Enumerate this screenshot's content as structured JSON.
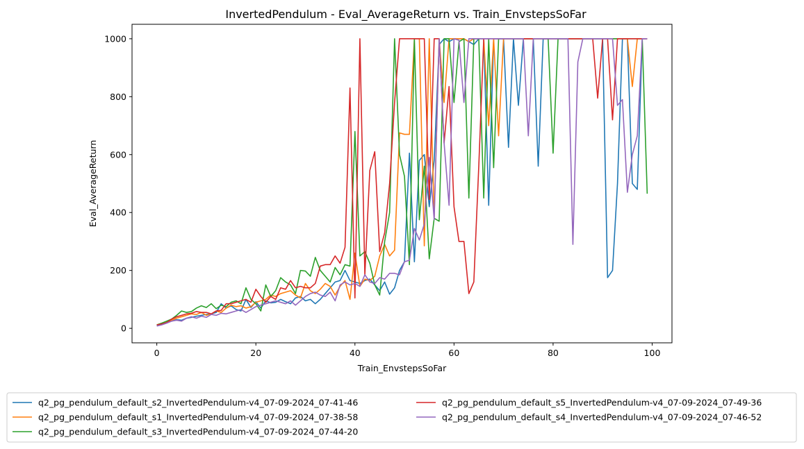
{
  "chart_data": {
    "type": "line",
    "title": "InvertedPendulum - Eval_AverageReturn vs. Train_EnvstepsSoFar",
    "xlabel": "Train_EnvstepsSoFar",
    "ylabel": "Eval_AverageReturn",
    "xlim": [
      -5,
      104
    ],
    "ylim": [
      -50,
      1050
    ],
    "xticks": [
      0,
      20,
      40,
      60,
      80,
      100
    ],
    "yticks": [
      0,
      200,
      400,
      600,
      800,
      1000
    ],
    "grid": false,
    "legend_position": "bottom-center",
    "series": [
      {
        "name": "q2_pg_pendulum_default_s2_InvertedPendulum-v4_07-09-2024_07-41-46",
        "color": "#1f77b4",
        "x": [
          0,
          1,
          2,
          3,
          4,
          5,
          6,
          7,
          8,
          9,
          10,
          11,
          12,
          13,
          14,
          15,
          16,
          17,
          18,
          19,
          20,
          21,
          22,
          23,
          24,
          25,
          26,
          27,
          28,
          29,
          30,
          31,
          32,
          33,
          34,
          35,
          36,
          37,
          38,
          39,
          40,
          41,
          42,
          43,
          44,
          45,
          46,
          47,
          48,
          49,
          50,
          51,
          52,
          53,
          54,
          55,
          56,
          57,
          58,
          59,
          60,
          61,
          62,
          63,
          64,
          65,
          66,
          67,
          68,
          69,
          70,
          71,
          72,
          73,
          74,
          75,
          76,
          77,
          78,
          79,
          80,
          81,
          82,
          83,
          84,
          85,
          86,
          87,
          88,
          89,
          90,
          91,
          92,
          93,
          94,
          95,
          96,
          97,
          98,
          99
        ],
        "y": [
          10,
          15,
          22,
          25,
          30,
          28,
          35,
          38,
          42,
          45,
          48,
          50,
          55,
          85,
          70,
          78,
          65,
          60,
          100,
          72,
          92,
          70,
          95,
          88,
          90,
          100,
          92,
          85,
          105,
          110,
          95,
          100,
          85,
          100,
          120,
          140,
          160,
          165,
          200,
          165,
          160,
          155,
          165,
          170,
          150,
          130,
          160,
          118,
          140,
          200,
          230,
          605,
          230,
          580,
          600,
          420,
          580,
          980,
          1000,
          990,
          1000,
          1000,
          1000,
          990,
          980,
          1000,
          1000,
          425,
          1000,
          1000,
          1000,
          625,
          1000,
          770,
          1000,
          1000,
          1000,
          560,
          1000,
          1000,
          1000,
          1000,
          1000,
          1000,
          1000,
          1000,
          1000,
          1000,
          1000,
          1000,
          1000,
          175,
          200,
          500,
          1000,
          1000,
          500,
          480,
          1000,
          1000
        ]
      },
      {
        "name": "q2_pg_pendulum_default_s1_InvertedPendulum-v4_07-09-2024_07-38-58",
        "color": "#ff7f0e",
        "x": [
          0,
          1,
          2,
          3,
          4,
          5,
          6,
          7,
          8,
          9,
          10,
          11,
          12,
          13,
          14,
          15,
          16,
          17,
          18,
          19,
          20,
          21,
          22,
          23,
          24,
          25,
          26,
          27,
          28,
          29,
          30,
          31,
          32,
          33,
          34,
          35,
          36,
          37,
          38,
          39,
          40,
          41,
          42,
          43,
          44,
          45,
          46,
          47,
          48,
          49,
          50,
          51,
          52,
          53,
          54,
          55,
          56,
          57,
          58,
          59,
          60,
          61,
          62,
          63,
          64,
          65,
          66,
          67,
          68,
          69,
          70,
          71,
          72,
          73,
          74,
          75,
          76,
          77,
          78,
          79,
          80,
          81,
          82,
          83,
          84,
          85,
          86,
          87,
          88,
          89,
          90,
          91,
          92,
          93,
          94,
          95,
          96,
          97,
          98,
          99
        ],
        "y": [
          12,
          18,
          22,
          28,
          35,
          40,
          45,
          50,
          48,
          55,
          45,
          50,
          60,
          55,
          70,
          80,
          75,
          78,
          70,
          75,
          90,
          95,
          100,
          115,
          110,
          120,
          125,
          130,
          115,
          105,
          155,
          130,
          120,
          135,
          155,
          145,
          115,
          145,
          165,
          100,
          260,
          145,
          170,
          165,
          180,
          250,
          290,
          250,
          270,
          675,
          670,
          670,
          1000,
          1000,
          285,
          1000,
          385,
          1000,
          780,
          1000,
          1000,
          1000,
          1000,
          990,
          1000,
          1000,
          1000,
          700,
          1000,
          665,
          1000,
          1000,
          1000,
          1000,
          1000,
          1000,
          1000,
          1000,
          1000,
          1000,
          1000,
          1000,
          1000,
          1000,
          1000,
          1000,
          1000,
          1000,
          1000,
          1000,
          1000,
          1000,
          1000,
          1000,
          1000,
          1000,
          835,
          1000,
          1000,
          1000
        ]
      },
      {
        "name": "q2_pg_pendulum_default_s3_InvertedPendulum-v4_07-09-2024_07-44-20",
        "color": "#2ca02c",
        "x": [
          0,
          1,
          2,
          3,
          4,
          5,
          6,
          7,
          8,
          9,
          10,
          11,
          12,
          13,
          14,
          15,
          16,
          17,
          18,
          19,
          20,
          21,
          22,
          23,
          24,
          25,
          26,
          27,
          28,
          29,
          30,
          31,
          32,
          33,
          34,
          35,
          36,
          37,
          38,
          39,
          40,
          41,
          42,
          43,
          44,
          45,
          46,
          47,
          48,
          49,
          50,
          51,
          52,
          53,
          54,
          55,
          56,
          57,
          58,
          59,
          60,
          61,
          62,
          63,
          64,
          65,
          66,
          67,
          68,
          69,
          70,
          71,
          72,
          73,
          74,
          75,
          76,
          77,
          78,
          79,
          80,
          81,
          82,
          83,
          84,
          85,
          86,
          87,
          88,
          89,
          90,
          91,
          92,
          93,
          94,
          95,
          96,
          97,
          98,
          99
        ],
        "y": [
          12,
          18,
          25,
          32,
          45,
          60,
          55,
          58,
          70,
          78,
          72,
          85,
          68,
          80,
          75,
          90,
          95,
          85,
          140,
          100,
          85,
          60,
          150,
          110,
          130,
          175,
          160,
          150,
          120,
          200,
          198,
          180,
          245,
          200,
          180,
          160,
          210,
          185,
          220,
          215,
          680,
          250,
          265,
          225,
          150,
          115,
          300,
          400,
          1000,
          600,
          525,
          220,
          1000,
          375,
          560,
          240,
          380,
          370,
          1000,
          1000,
          780,
          990,
          1000,
          450,
          1000,
          1000,
          450,
          1000,
          555,
          1000,
          1000,
          1000,
          1000,
          1000,
          1000,
          1000,
          1000,
          1000,
          1000,
          1000,
          605,
          1000,
          1000,
          1000,
          1000,
          1000,
          1000,
          1000,
          1000,
          1000,
          1000,
          1000,
          1000,
          1000,
          1000,
          1000,
          1000,
          1000,
          1000,
          465
        ]
      },
      {
        "name": "q2_pg_pendulum_default_s5_InvertedPendulum-v4_07-09-2024_07-49-36",
        "color": "#d62728",
        "x": [
          0,
          1,
          2,
          3,
          4,
          5,
          6,
          7,
          8,
          9,
          10,
          11,
          12,
          13,
          14,
          15,
          16,
          17,
          18,
          19,
          20,
          21,
          22,
          23,
          24,
          25,
          26,
          27,
          28,
          29,
          30,
          31,
          32,
          33,
          34,
          35,
          36,
          37,
          38,
          39,
          40,
          41,
          42,
          43,
          44,
          45,
          46,
          47,
          48,
          49,
          50,
          51,
          52,
          53,
          54,
          55,
          56,
          57,
          58,
          59,
          60,
          61,
          62,
          63,
          64,
          65,
          66,
          67,
          68,
          69,
          70,
          71,
          72,
          73,
          74,
          75,
          76,
          77,
          78,
          79,
          80,
          81,
          82,
          83,
          84,
          85,
          86,
          87,
          88,
          89,
          90,
          91,
          92,
          93,
          94,
          95,
          96,
          97,
          98,
          99
        ],
        "y": [
          12,
          15,
          20,
          32,
          40,
          45,
          50,
          52,
          58,
          55,
          55,
          50,
          60,
          62,
          85,
          85,
          90,
          95,
          100,
          90,
          135,
          110,
          90,
          110,
          100,
          140,
          135,
          165,
          140,
          145,
          140,
          140,
          155,
          215,
          220,
          220,
          250,
          225,
          280,
          830,
          105,
          1000,
          185,
          545,
          610,
          265,
          330,
          500,
          780,
          1000,
          1000,
          1000,
          1000,
          1000,
          1000,
          445,
          1000,
          1000,
          640,
          835,
          420,
          300,
          300,
          120,
          160,
          560,
          1000,
          1000,
          1000,
          1000,
          1000,
          1000,
          1000,
          1000,
          1000,
          1000,
          1000,
          1000,
          1000,
          1000,
          1000,
          1000,
          1000,
          1000,
          1000,
          1000,
          1000,
          1000,
          1000,
          795,
          1000,
          1000,
          720,
          1000,
          1000,
          1000,
          1000,
          1000,
          1000,
          1000
        ]
      },
      {
        "name": "q2_pg_pendulum_default_s4_InvertedPendulum-v4_07-09-2024_07-46-52",
        "color": "#9467bd",
        "x": [
          0,
          1,
          2,
          3,
          4,
          5,
          6,
          7,
          8,
          9,
          10,
          11,
          12,
          13,
          14,
          15,
          16,
          17,
          18,
          19,
          20,
          21,
          22,
          23,
          24,
          25,
          26,
          27,
          28,
          29,
          30,
          31,
          32,
          33,
          34,
          35,
          36,
          37,
          38,
          39,
          40,
          41,
          42,
          43,
          44,
          45,
          46,
          47,
          48,
          49,
          50,
          51,
          52,
          53,
          54,
          55,
          56,
          57,
          58,
          59,
          60,
          61,
          62,
          63,
          64,
          65,
          66,
          67,
          68,
          69,
          70,
          71,
          72,
          73,
          74,
          75,
          76,
          77,
          78,
          79,
          80,
          81,
          82,
          83,
          84,
          85,
          86,
          87,
          88,
          89,
          90,
          91,
          92,
          93,
          94,
          95,
          96,
          97,
          98,
          99
        ],
        "y": [
          8,
          12,
          18,
          25,
          28,
          25,
          35,
          40,
          35,
          42,
          38,
          48,
          45,
          52,
          50,
          55,
          60,
          65,
          55,
          65,
          75,
          80,
          85,
          90,
          95,
          90,
          85,
          95,
          80,
          95,
          110,
          120,
          125,
          115,
          110,
          125,
          95,
          150,
          160,
          150,
          155,
          145,
          185,
          160,
          155,
          175,
          170,
          190,
          190,
          185,
          230,
          235,
          345,
          305,
          360,
          590,
          375,
          1000,
          640,
          425,
          1000,
          995,
          780,
          1000,
          1000,
          1000,
          1000,
          1000,
          1000,
          1000,
          1000,
          1000,
          1000,
          1000,
          1000,
          665,
          1000,
          1000,
          1000,
          1000,
          1000,
          1000,
          1000,
          1000,
          290,
          920,
          1000,
          1000,
          1000,
          1000,
          1000,
          1000,
          1000,
          770,
          790,
          470,
          600,
          665,
          1000,
          1000
        ]
      }
    ]
  }
}
